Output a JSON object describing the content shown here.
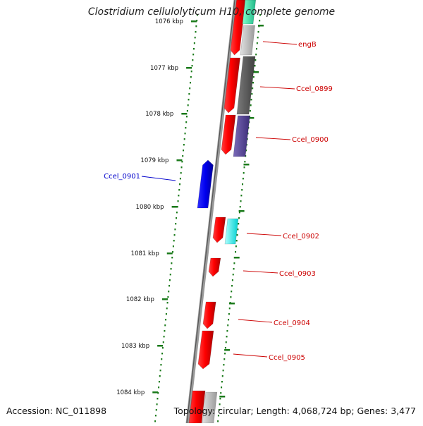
{
  "title": "Clostridium cellulolyticum H10, complete genome",
  "accession": "Accession: NC_011898",
  "summary": "Topology: circular; Length: 4,068,724 bp; Genes: 3,477",
  "ticks": [
    "1076 kbp",
    "1077 kbp",
    "1078 kbp",
    "1079 kbp",
    "1080 kbp",
    "1081 kbp",
    "1082 kbp",
    "1083 kbp",
    "1084 kbp"
  ],
  "gene_labels": [
    {
      "text": "engB",
      "strand": "forward"
    },
    {
      "text": "Ccel_0899",
      "strand": "forward"
    },
    {
      "text": "Ccel_0900",
      "strand": "forward"
    },
    {
      "text": "Ccel_0901",
      "strand": "reverse"
    },
    {
      "text": "Ccel_0902",
      "strand": "forward"
    },
    {
      "text": "Ccel_0903",
      "strand": "forward"
    },
    {
      "text": "Ccel_0904",
      "strand": "forward"
    },
    {
      "text": "Ccel_0905",
      "strand": "forward"
    }
  ],
  "colors": {
    "forward_cds": "#ff0000",
    "reverse_cds": "#0000ee",
    "forward_label": "#cc0000",
    "reverse_label": "#0000cc",
    "backbone": "#888888",
    "tick_marks": "#1a7a1a",
    "feature_grey": "#bdbdbd",
    "feature_dark": "#5a5a5a",
    "feature_purple": "#5a4a9a",
    "feature_cyan": "#00ffff",
    "feature_teal": "#33ddaa"
  }
}
